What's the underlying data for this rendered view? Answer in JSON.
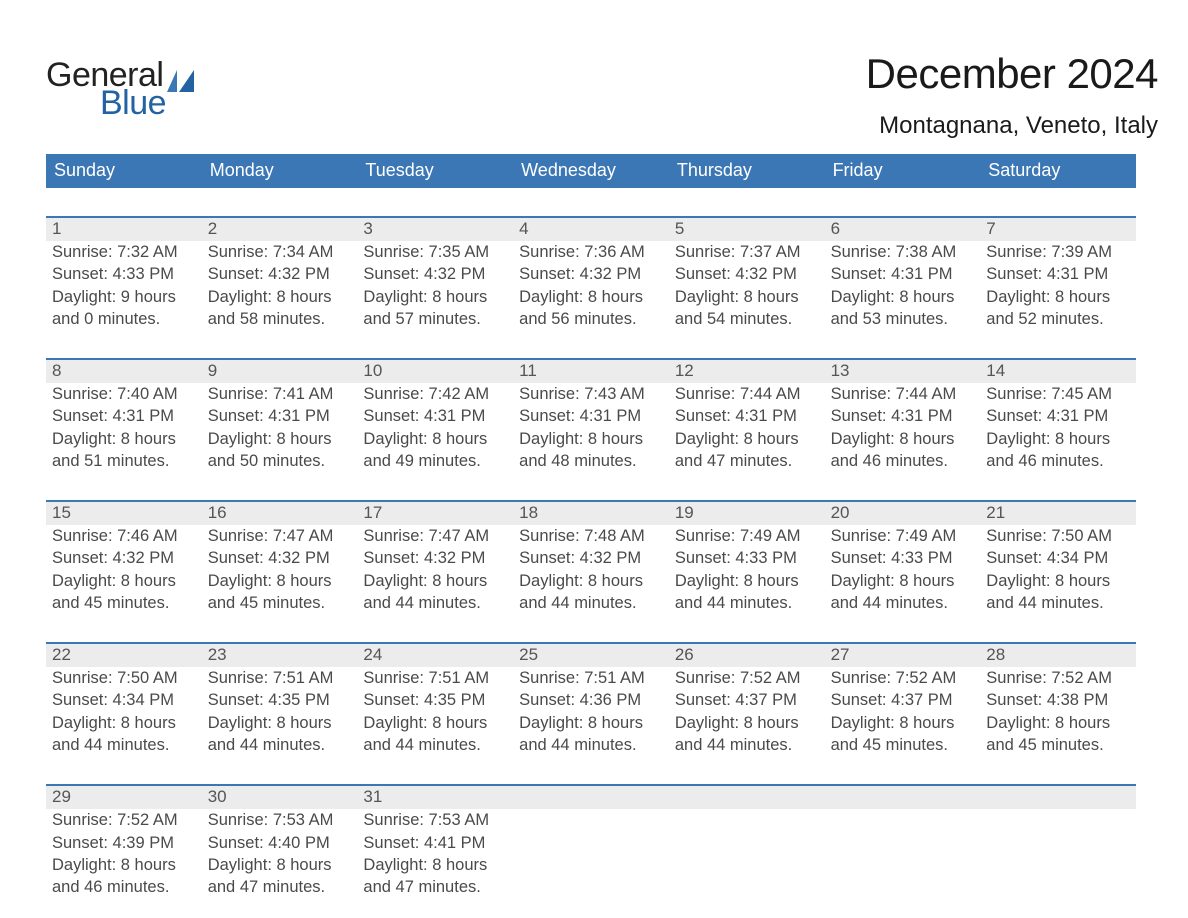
{
  "brand": {
    "word1": "General",
    "word2": "Blue",
    "colors": {
      "accent": "#3b76b5",
      "dark": "#2463a3"
    }
  },
  "header": {
    "title": "December 2024",
    "subtitle": "Montagnana, Veneto, Italy"
  },
  "calendar": {
    "days_of_week": [
      "Sunday",
      "Monday",
      "Tuesday",
      "Wednesday",
      "Thursday",
      "Friday",
      "Saturday"
    ],
    "colors": {
      "header_bg": "#3b76b5",
      "header_text": "#ffffff",
      "date_row_bg": "#ececec",
      "rule": "#3b76b5",
      "text": "#2a2a2a",
      "muted": "#4a4a4a",
      "background": "#ffffff"
    },
    "typography": {
      "title_fontsize_pt": 32,
      "subtitle_fontsize_pt": 18,
      "dow_fontsize_pt": 14,
      "date_fontsize_pt": 13,
      "body_fontsize_pt": 12.5,
      "font_family": "Arial"
    },
    "weeks": [
      [
        {
          "date": "1",
          "sunrise": "7:32 AM",
          "sunset": "4:33 PM",
          "daylight_h": 9,
          "daylight_m": 0
        },
        {
          "date": "2",
          "sunrise": "7:34 AM",
          "sunset": "4:32 PM",
          "daylight_h": 8,
          "daylight_m": 58
        },
        {
          "date": "3",
          "sunrise": "7:35 AM",
          "sunset": "4:32 PM",
          "daylight_h": 8,
          "daylight_m": 57
        },
        {
          "date": "4",
          "sunrise": "7:36 AM",
          "sunset": "4:32 PM",
          "daylight_h": 8,
          "daylight_m": 56
        },
        {
          "date": "5",
          "sunrise": "7:37 AM",
          "sunset": "4:32 PM",
          "daylight_h": 8,
          "daylight_m": 54
        },
        {
          "date": "6",
          "sunrise": "7:38 AM",
          "sunset": "4:31 PM",
          "daylight_h": 8,
          "daylight_m": 53
        },
        {
          "date": "7",
          "sunrise": "7:39 AM",
          "sunset": "4:31 PM",
          "daylight_h": 8,
          "daylight_m": 52
        }
      ],
      [
        {
          "date": "8",
          "sunrise": "7:40 AM",
          "sunset": "4:31 PM",
          "daylight_h": 8,
          "daylight_m": 51
        },
        {
          "date": "9",
          "sunrise": "7:41 AM",
          "sunset": "4:31 PM",
          "daylight_h": 8,
          "daylight_m": 50
        },
        {
          "date": "10",
          "sunrise": "7:42 AM",
          "sunset": "4:31 PM",
          "daylight_h": 8,
          "daylight_m": 49
        },
        {
          "date": "11",
          "sunrise": "7:43 AM",
          "sunset": "4:31 PM",
          "daylight_h": 8,
          "daylight_m": 48
        },
        {
          "date": "12",
          "sunrise": "7:44 AM",
          "sunset": "4:31 PM",
          "daylight_h": 8,
          "daylight_m": 47
        },
        {
          "date": "13",
          "sunrise": "7:44 AM",
          "sunset": "4:31 PM",
          "daylight_h": 8,
          "daylight_m": 46
        },
        {
          "date": "14",
          "sunrise": "7:45 AM",
          "sunset": "4:31 PM",
          "daylight_h": 8,
          "daylight_m": 46
        }
      ],
      [
        {
          "date": "15",
          "sunrise": "7:46 AM",
          "sunset": "4:32 PM",
          "daylight_h": 8,
          "daylight_m": 45
        },
        {
          "date": "16",
          "sunrise": "7:47 AM",
          "sunset": "4:32 PM",
          "daylight_h": 8,
          "daylight_m": 45
        },
        {
          "date": "17",
          "sunrise": "7:47 AM",
          "sunset": "4:32 PM",
          "daylight_h": 8,
          "daylight_m": 44
        },
        {
          "date": "18",
          "sunrise": "7:48 AM",
          "sunset": "4:32 PM",
          "daylight_h": 8,
          "daylight_m": 44
        },
        {
          "date": "19",
          "sunrise": "7:49 AM",
          "sunset": "4:33 PM",
          "daylight_h": 8,
          "daylight_m": 44
        },
        {
          "date": "20",
          "sunrise": "7:49 AM",
          "sunset": "4:33 PM",
          "daylight_h": 8,
          "daylight_m": 44
        },
        {
          "date": "21",
          "sunrise": "7:50 AM",
          "sunset": "4:34 PM",
          "daylight_h": 8,
          "daylight_m": 44
        }
      ],
      [
        {
          "date": "22",
          "sunrise": "7:50 AM",
          "sunset": "4:34 PM",
          "daylight_h": 8,
          "daylight_m": 44
        },
        {
          "date": "23",
          "sunrise": "7:51 AM",
          "sunset": "4:35 PM",
          "daylight_h": 8,
          "daylight_m": 44
        },
        {
          "date": "24",
          "sunrise": "7:51 AM",
          "sunset": "4:35 PM",
          "daylight_h": 8,
          "daylight_m": 44
        },
        {
          "date": "25",
          "sunrise": "7:51 AM",
          "sunset": "4:36 PM",
          "daylight_h": 8,
          "daylight_m": 44
        },
        {
          "date": "26",
          "sunrise": "7:52 AM",
          "sunset": "4:37 PM",
          "daylight_h": 8,
          "daylight_m": 44
        },
        {
          "date": "27",
          "sunrise": "7:52 AM",
          "sunset": "4:37 PM",
          "daylight_h": 8,
          "daylight_m": 45
        },
        {
          "date": "28",
          "sunrise": "7:52 AM",
          "sunset": "4:38 PM",
          "daylight_h": 8,
          "daylight_m": 45
        }
      ],
      [
        {
          "date": "29",
          "sunrise": "7:52 AM",
          "sunset": "4:39 PM",
          "daylight_h": 8,
          "daylight_m": 46
        },
        {
          "date": "30",
          "sunrise": "7:53 AM",
          "sunset": "4:40 PM",
          "daylight_h": 8,
          "daylight_m": 47
        },
        {
          "date": "31",
          "sunrise": "7:53 AM",
          "sunset": "4:41 PM",
          "daylight_h": 8,
          "daylight_m": 47
        },
        null,
        null,
        null,
        null
      ]
    ],
    "labels": {
      "sunrise_prefix": "Sunrise: ",
      "sunset_prefix": "Sunset: ",
      "daylight_prefix": "Daylight: ",
      "hours_word": " hours",
      "and_word": "and ",
      "minutes_word": " minutes."
    }
  }
}
